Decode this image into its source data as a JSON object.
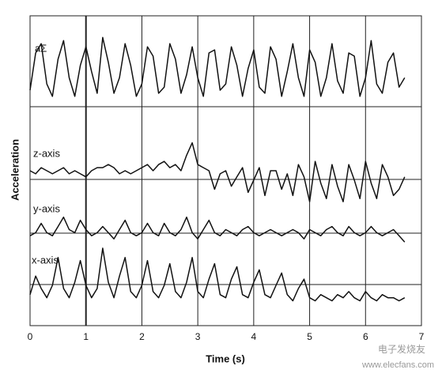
{
  "chart_data": {
    "type": "line",
    "x_label": "Time (s)",
    "y_label": "Acceleration",
    "xlim": [
      0,
      7
    ],
    "xticks": [
      0,
      1,
      2,
      3,
      4,
      5,
      6,
      7
    ],
    "ylim": [
      0,
      100
    ],
    "grid": true,
    "x": [
      0,
      0.1,
      0.2,
      0.3,
      0.4,
      0.5,
      0.6,
      0.7,
      0.8,
      0.9,
      1,
      1.1,
      1.2,
      1.3,
      1.4,
      1.5,
      1.6,
      1.7,
      1.8,
      1.9,
      2,
      2.1,
      2.2,
      2.3,
      2.4,
      2.5,
      2.6,
      2.7,
      2.8,
      2.9,
      3,
      3.1,
      3.2,
      3.3,
      3.4,
      3.5,
      3.6,
      3.7,
      3.8,
      3.9,
      4,
      4.1,
      4.2,
      4.3,
      4.4,
      4.5,
      4.6,
      4.7,
      4.8,
      4.9,
      5,
      5.1,
      5.2,
      5.3,
      5.4,
      5.5,
      5.6,
      5.7,
      5.8,
      5.9,
      6,
      6.1,
      6.2,
      6.3,
      6.4,
      6.5,
      6.6,
      6.7
    ],
    "series": [
      {
        "name": "aΣ",
        "color": "#111111",
        "values": [
          76,
          88,
          91,
          78,
          74,
          86,
          92,
          80,
          74,
          84,
          90,
          82,
          75,
          93,
          85,
          75,
          80,
          91,
          84,
          74,
          78,
          90,
          87,
          75,
          77,
          91,
          86,
          75,
          81,
          90,
          80,
          74,
          88,
          89,
          76,
          78,
          90,
          84,
          74,
          83,
          89,
          77,
          75,
          90,
          86,
          74,
          82,
          91,
          80,
          74,
          89,
          85,
          74,
          80,
          91,
          79,
          75,
          88,
          87,
          74,
          80,
          92,
          78,
          75,
          85,
          88,
          77,
          80
        ]
      },
      {
        "name": "z-axis",
        "color": "#111111",
        "values": [
          50,
          49,
          51,
          50,
          49,
          50,
          51,
          49,
          50,
          49,
          48,
          50,
          51,
          51,
          52,
          51,
          49,
          50,
          49,
          50,
          51,
          52,
          50,
          52,
          53,
          51,
          52,
          50,
          55,
          59,
          52,
          51,
          50,
          44,
          49,
          50,
          45,
          48,
          51,
          43,
          47,
          51,
          42,
          50,
          50,
          44,
          49,
          42,
          52,
          48,
          40,
          53,
          46,
          41,
          52,
          45,
          40,
          52,
          47,
          41,
          53,
          46,
          41,
          52,
          48,
          42,
          44,
          48
        ]
      },
      {
        "name": "y-axis",
        "color": "#111111",
        "values": [
          29,
          30,
          33,
          30,
          29,
          32,
          35,
          31,
          30,
          34,
          31,
          29,
          30,
          32,
          30,
          28,
          31,
          34,
          30,
          29,
          30,
          33,
          30,
          29,
          33,
          30,
          29,
          31,
          35,
          30,
          28,
          31,
          34,
          30,
          29,
          31,
          30,
          29,
          31,
          32,
          30,
          29,
          30,
          31,
          30,
          29,
          30,
          31,
          30,
          28,
          31,
          30,
          29,
          31,
          32,
          30,
          29,
          32,
          30,
          29,
          30,
          32,
          30,
          29,
          30,
          31,
          29,
          27
        ]
      },
      {
        "name": "x-axis",
        "color": "#111111",
        "values": [
          10,
          16,
          12,
          9,
          13,
          22,
          12,
          9,
          14,
          21,
          13,
          9,
          12,
          25,
          14,
          9,
          16,
          22,
          11,
          9,
          13,
          21,
          11,
          9,
          13,
          20,
          11,
          9,
          14,
          22,
          11,
          9,
          15,
          20,
          10,
          9,
          15,
          19,
          10,
          9,
          14,
          18,
          10,
          9,
          13,
          17,
          10,
          8,
          12,
          15,
          9,
          8,
          10,
          9,
          8,
          10,
          9,
          11,
          9,
          8,
          11,
          9,
          8,
          10,
          9,
          9,
          8,
          9
        ]
      }
    ]
  },
  "watermark": {
    "name": "电子发烧友",
    "url": "www.elecfans.com"
  }
}
